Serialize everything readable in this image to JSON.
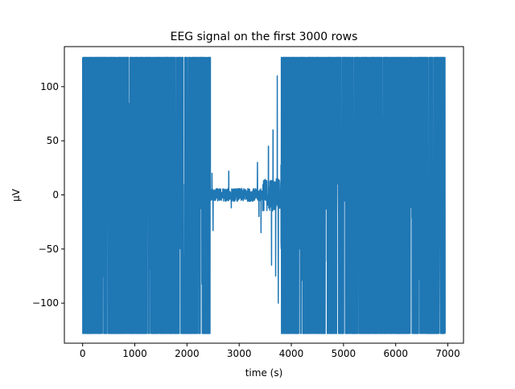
{
  "chart_data": {
    "type": "line",
    "title": "EEG signal on the first 3000 rows",
    "xlabel": "time (s)",
    "ylabel": "µV",
    "xlim": [
      -350,
      7300
    ],
    "ylim": [
      -137,
      137
    ],
    "x_ticks": [
      0,
      1000,
      2000,
      3000,
      4000,
      5000,
      6000,
      7000
    ],
    "y_ticks": [
      -100,
      -50,
      0,
      50,
      100
    ],
    "x_tick_labels": [
      "0",
      "1000",
      "2000",
      "3000",
      "4000",
      "5000",
      "6000",
      "7000"
    ],
    "y_tick_labels": [
      "−100",
      "−50",
      "0",
      "50",
      "100"
    ],
    "grid": false,
    "series": [
      {
        "color": "#1f77b4",
        "x_range": [
          0,
          6950
        ],
        "clip_range": [
          -128,
          127
        ],
        "segments": [
          {
            "x": [
              0,
              2450
            ],
            "kind": "saturated",
            "upper": 127,
            "lower": -128,
            "density": 0.75
          },
          {
            "x": [
              2450,
              3450
            ],
            "kind": "quiet",
            "amplitude": 6,
            "spikes": [
              {
                "x": 2480,
                "y": 20
              },
              {
                "x": 2500,
                "y": -33
              },
              {
                "x": 2800,
                "y": 22
              },
              {
                "x": 2850,
                "y": -12
              },
              {
                "x": 3350,
                "y": 30
              },
              {
                "x": 3380,
                "y": -20
              },
              {
                "x": 3420,
                "y": -35
              }
            ]
          },
          {
            "x": [
              3450,
              3800
            ],
            "kind": "transition",
            "amplitude": 15,
            "spikes": [
              {
                "x": 3560,
                "y": 45
              },
              {
                "x": 3620,
                "y": -65
              },
              {
                "x": 3650,
                "y": 60
              },
              {
                "x": 3700,
                "y": -75
              },
              {
                "x": 3730,
                "y": 110
              },
              {
                "x": 3750,
                "y": -100
              }
            ]
          },
          {
            "x": [
              3800,
              6950
            ],
            "kind": "saturated",
            "upper": 127,
            "lower": -128,
            "density": 0.7
          }
        ]
      }
    ]
  }
}
